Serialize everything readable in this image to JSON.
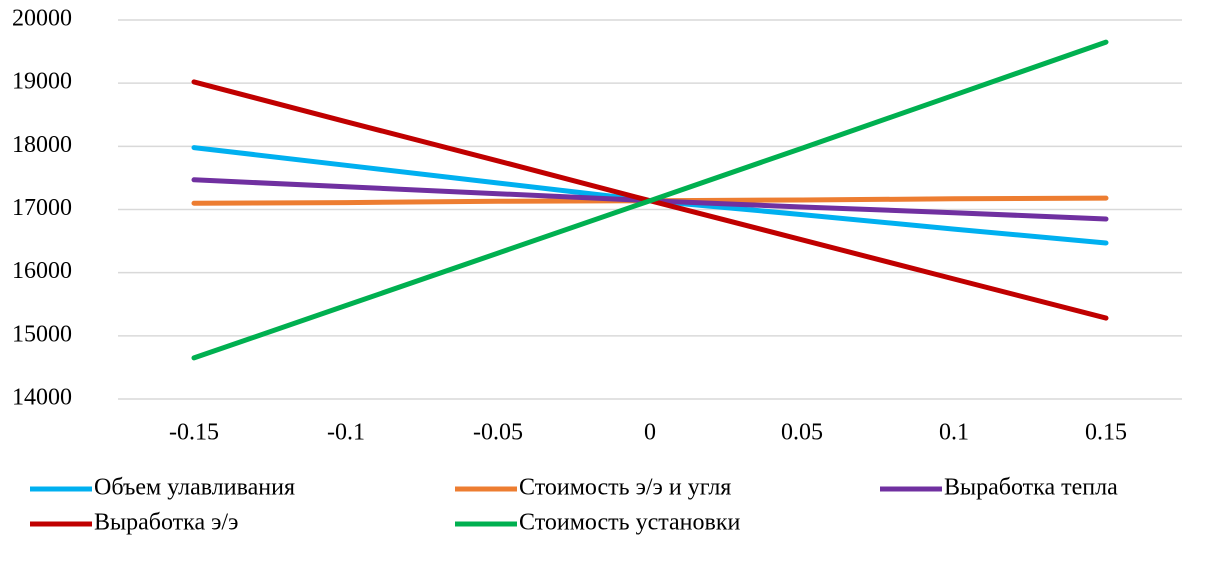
{
  "chart_data": {
    "type": "line",
    "categories": [
      "-0.15",
      "-0.1",
      "-0.05",
      "0",
      "0.05",
      "0.1",
      "0.15"
    ],
    "series": [
      {
        "name": "Объем улавливания",
        "color": "#00b0f0",
        "values": [
          17980,
          17700,
          17420,
          17140,
          16920,
          16690,
          16470
        ]
      },
      {
        "name": "Стоимость э/э и угля",
        "color": "#ed7d31",
        "values": [
          17100,
          17110,
          17130,
          17140,
          17150,
          17170,
          17180
        ]
      },
      {
        "name": "Выработка тепла",
        "color": "#7030a0",
        "values": [
          17470,
          17360,
          17250,
          17140,
          17040,
          16950,
          16850
        ]
      },
      {
        "name": "Выработка э/э",
        "color": "#c00000",
        "values": [
          19020,
          18390,
          17770,
          17140,
          16520,
          15900,
          15280
        ]
      },
      {
        "name": "Стоимость установки",
        "color": "#00b050",
        "values": [
          14650,
          15480,
          16310,
          17140,
          17970,
          18810,
          19650
        ]
      }
    ],
    "ylim": [
      14000,
      20000
    ],
    "yticks": [
      14000,
      15000,
      16000,
      17000,
      18000,
      19000,
      20000
    ],
    "grid": true
  }
}
